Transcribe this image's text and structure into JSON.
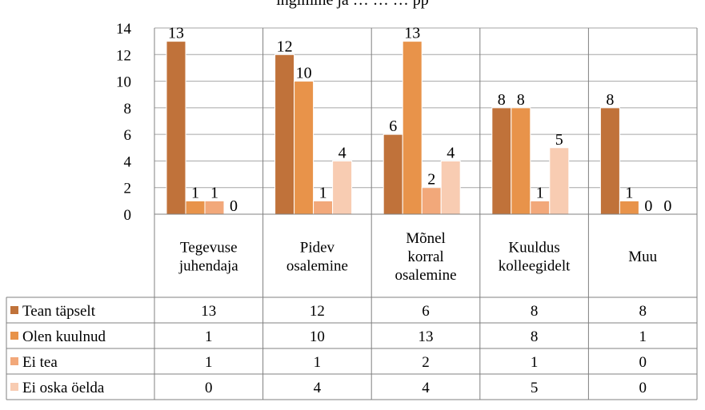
{
  "top_text": "ingimine ja …  …  … pp",
  "chart_data": {
    "type": "bar",
    "categories": [
      [
        "Tegevuse",
        "juhendaja"
      ],
      [
        "Pidev",
        "osalemine"
      ],
      [
        "Mõnel",
        "korral",
        "osalemine"
      ],
      [
        "Kuuldus",
        "kolleegidelt"
      ],
      [
        "Muu"
      ]
    ],
    "series": [
      {
        "name": "Tean täpselt",
        "values": [
          13,
          12,
          6,
          8,
          8
        ],
        "color": "#C0723A"
      },
      {
        "name": "Olen kuulnud",
        "values": [
          1,
          10,
          13,
          8,
          1
        ],
        "color": "#E8934A"
      },
      {
        "name": "Ei tea",
        "values": [
          1,
          1,
          2,
          1,
          0
        ],
        "color": "#F2A87A"
      },
      {
        "name": "Ei oska öelda",
        "values": [
          0,
          4,
          4,
          5,
          0
        ],
        "color": "#F8CCB2"
      }
    ],
    "ylim": [
      0,
      14
    ],
    "yticks": [
      0,
      2,
      4,
      6,
      8,
      10,
      12,
      14
    ],
    "grid": true,
    "legend": "data-table-rows"
  }
}
